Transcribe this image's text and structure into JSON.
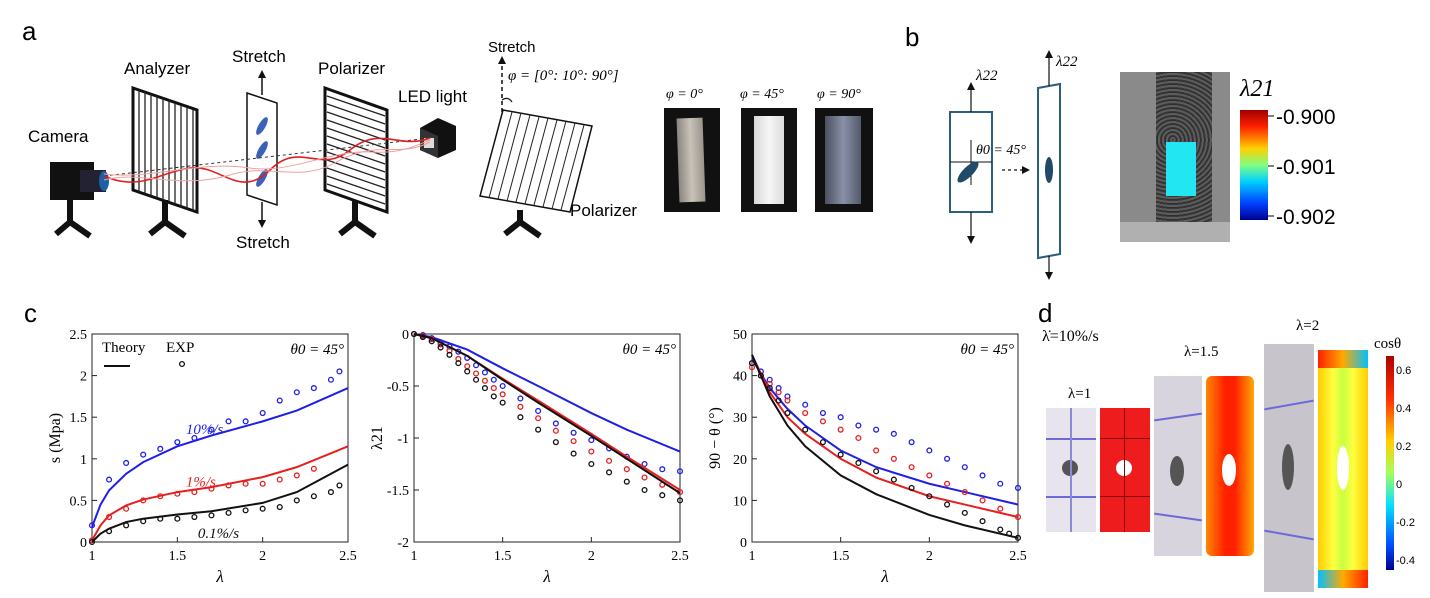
{
  "panels": {
    "a": {
      "letter": "a",
      "labels": {
        "camera": "Camera",
        "analyzer": "Analyzer",
        "stretch_top": "Stretch",
        "stretch_bottom": "Stretch",
        "polarizer": "Polarizer",
        "led": "LED light",
        "stretch_right": "Stretch",
        "phi_range": "φ = [0°: 10°: 90°]",
        "polarizer_right": "Polarizer"
      },
      "photos": [
        "φ = 0°",
        "φ = 45°",
        "φ = 90°"
      ]
    },
    "b": {
      "letter": "b",
      "lambda22_a": "λ22",
      "lambda22_b": "λ22",
      "theta_label": "θ0 = 45°",
      "colorbar_title": "λ21",
      "colorbar_ticks": [
        "-0.900",
        "-0.901",
        "-0.902"
      ]
    },
    "c": {
      "letter": "c"
    },
    "d": {
      "letter": "d",
      "rate": "λ̇=10%/s",
      "stages": [
        "λ=1",
        "λ=1.5",
        "λ=2"
      ],
      "colorbar_title": "cosθ",
      "colorbar_ticks": [
        "0.6",
        "0.4",
        "0.2",
        "0",
        "-0.2",
        "-0.4"
      ]
    }
  },
  "chart_data": [
    {
      "type": "line",
      "annotation": "θ0 = 45°",
      "xlabel": "λ",
      "ylabel": "s (Mpa)",
      "xlim": [
        1,
        2.5
      ],
      "ylim": [
        0,
        2.5
      ],
      "xticks": [
        "1",
        "1.5",
        "2",
        "2.5"
      ],
      "yticks": [
        "0",
        "0.5",
        "1",
        "1.5",
        "2",
        "2.5"
      ],
      "legend": {
        "theory": "Theory",
        "exp": "EXP"
      },
      "series": [
        {
          "name": "10%/s",
          "color": "#1f1fe6",
          "theory": {
            "x": [
              1,
              1.05,
              1.1,
              1.2,
              1.3,
              1.5,
              1.7,
              2.0,
              2.2,
              2.5
            ],
            "y": [
              0.18,
              0.45,
              0.62,
              0.82,
              0.96,
              1.15,
              1.28,
              1.45,
              1.58,
              1.85
            ]
          },
          "exp": {
            "x": [
              1,
              1.1,
              1.2,
              1.3,
              1.4,
              1.5,
              1.6,
              1.7,
              1.8,
              1.9,
              2.0,
              2.1,
              2.2,
              2.3,
              2.4,
              2.45
            ],
            "y": [
              0.2,
              0.75,
              0.95,
              1.05,
              1.12,
              1.2,
              1.25,
              1.35,
              1.45,
              1.45,
              1.55,
              1.7,
              1.8,
              1.85,
              1.95,
              2.05
            ]
          }
        },
        {
          "name": "1%/s",
          "color": "#e61f1f",
          "theory": {
            "x": [
              1,
              1.05,
              1.1,
              1.2,
              1.3,
              1.5,
              1.7,
              2.0,
              2.2,
              2.5
            ],
            "y": [
              0.02,
              0.2,
              0.32,
              0.44,
              0.51,
              0.6,
              0.66,
              0.78,
              0.9,
              1.15
            ]
          },
          "exp": {
            "x": [
              1,
              1.1,
              1.2,
              1.3,
              1.4,
              1.5,
              1.6,
              1.7,
              1.8,
              1.9,
              2.0,
              2.1,
              2.2,
              2.3
            ],
            "y": [
              0.02,
              0.3,
              0.4,
              0.5,
              0.55,
              0.58,
              0.6,
              0.64,
              0.68,
              0.7,
              0.7,
              0.75,
              0.8,
              0.88
            ]
          }
        },
        {
          "name": "0.1%/s",
          "color": "#111111",
          "theory": {
            "x": [
              1,
              1.05,
              1.1,
              1.2,
              1.3,
              1.5,
              1.7,
              2.0,
              2.2,
              2.5
            ],
            "y": [
              0.0,
              0.1,
              0.16,
              0.24,
              0.28,
              0.33,
              0.37,
              0.47,
              0.6,
              0.93
            ]
          },
          "exp": {
            "x": [
              1,
              1.1,
              1.2,
              1.3,
              1.4,
              1.5,
              1.6,
              1.7,
              1.8,
              1.9,
              2.0,
              2.1,
              2.2,
              2.3,
              2.4,
              2.45
            ],
            "y": [
              0.0,
              0.13,
              0.2,
              0.25,
              0.28,
              0.28,
              0.3,
              0.32,
              0.35,
              0.38,
              0.4,
              0.42,
              0.5,
              0.55,
              0.6,
              0.68
            ]
          }
        }
      ]
    },
    {
      "type": "line",
      "annotation": "θ0 = 45°",
      "xlabel": "λ",
      "ylabel": "λ21",
      "xlim": [
        1,
        2.5
      ],
      "ylim": [
        -2,
        0
      ],
      "xticks": [
        "1",
        "1.5",
        "2",
        "2.5"
      ],
      "yticks": [
        "0",
        "-0.5",
        "-1",
        "-1.5",
        "-2"
      ],
      "series": [
        {
          "name": "10%/s",
          "color": "#1f1fe6",
          "theory": {
            "x": [
              1,
              1.1,
              1.3,
              1.5,
              1.7,
              2.0,
              2.2,
              2.5
            ],
            "y": [
              0,
              -0.03,
              -0.15,
              -0.33,
              -0.5,
              -0.76,
              -0.92,
              -1.13
            ]
          },
          "exp": {
            "x": [
              1,
              1.05,
              1.1,
              1.15,
              1.2,
              1.25,
              1.3,
              1.35,
              1.4,
              1.45,
              1.5,
              1.6,
              1.7,
              1.8,
              1.9,
              2.0,
              2.1,
              2.2,
              2.3,
              2.4,
              2.5
            ],
            "y": [
              0,
              -0.01,
              -0.04,
              -0.08,
              -0.12,
              -0.17,
              -0.23,
              -0.3,
              -0.37,
              -0.44,
              -0.5,
              -0.62,
              -0.74,
              -0.86,
              -0.95,
              -1.02,
              -1.1,
              -1.18,
              -1.25,
              -1.3,
              -1.32
            ]
          }
        },
        {
          "name": "1%/s",
          "color": "#e61f1f",
          "theory": {
            "x": [
              1,
              1.1,
              1.3,
              1.5,
              1.7,
              2.0,
              2.2,
              2.5
            ],
            "y": [
              0,
              -0.04,
              -0.21,
              -0.43,
              -0.64,
              -0.96,
              -1.18,
              -1.5
            ]
          },
          "exp": {
            "x": [
              1,
              1.05,
              1.1,
              1.15,
              1.2,
              1.25,
              1.3,
              1.35,
              1.4,
              1.45,
              1.5,
              1.6,
              1.7,
              1.8,
              1.9,
              2.0,
              2.1,
              2.2,
              2.3,
              2.4,
              2.5
            ],
            "y": [
              0,
              -0.02,
              -0.05,
              -0.1,
              -0.16,
              -0.24,
              -0.31,
              -0.38,
              -0.45,
              -0.52,
              -0.58,
              -0.7,
              -0.81,
              -0.93,
              -1.03,
              -1.13,
              -1.22,
              -1.3,
              -1.38,
              -1.45,
              -1.52
            ]
          }
        },
        {
          "name": "0.1%/s",
          "color": "#111111",
          "theory": {
            "x": [
              1,
              1.1,
              1.3,
              1.5,
              1.7,
              2.0,
              2.2,
              2.5
            ],
            "y": [
              0,
              -0.04,
              -0.21,
              -0.44,
              -0.66,
              -0.98,
              -1.2,
              -1.53
            ]
          },
          "exp": {
            "x": [
              1,
              1.05,
              1.1,
              1.15,
              1.2,
              1.25,
              1.3,
              1.35,
              1.4,
              1.45,
              1.5,
              1.6,
              1.7,
              1.8,
              1.9,
              2.0,
              2.1,
              2.2,
              2.3,
              2.4,
              2.5
            ],
            "y": [
              0,
              -0.03,
              -0.07,
              -0.13,
              -0.2,
              -0.28,
              -0.36,
              -0.44,
              -0.52,
              -0.6,
              -0.66,
              -0.8,
              -0.92,
              -1.04,
              -1.15,
              -1.25,
              -1.33,
              -1.42,
              -1.5,
              -1.55,
              -1.6
            ]
          }
        }
      ]
    },
    {
      "type": "line",
      "annotation": "θ0 = 45°",
      "xlabel": "λ",
      "ylabel": "90 − θ (°)",
      "xlim": [
        1,
        2.5
      ],
      "ylim": [
        0,
        50
      ],
      "xticks": [
        "1",
        "1.5",
        "2",
        "2.5"
      ],
      "yticks": [
        "0",
        "10",
        "20",
        "30",
        "40",
        "50"
      ],
      "series": [
        {
          "name": "10%/s",
          "color": "#1f1fe6",
          "theory": {
            "x": [
              1,
              1.1,
              1.2,
              1.3,
              1.5,
              1.7,
              2.0,
              2.2,
              2.5
            ],
            "y": [
              44,
              37,
              32,
              28,
              22,
              18,
              14,
              12,
              9
            ]
          },
          "exp": {
            "x": [
              1,
              1.05,
              1.1,
              1.15,
              1.2,
              1.3,
              1.4,
              1.5,
              1.6,
              1.7,
              1.8,
              1.9,
              2.0,
              2.1,
              2.2,
              2.3,
              2.4,
              2.5
            ],
            "y": [
              43,
              41,
              39,
              37,
              35,
              33,
              31,
              30,
              28,
              27,
              26,
              24,
              22,
              20,
              18,
              16,
              14,
              13
            ]
          }
        },
        {
          "name": "1%/s",
          "color": "#e61f1f",
          "theory": {
            "x": [
              1,
              1.1,
              1.2,
              1.3,
              1.5,
              1.7,
              2.0,
              2.2,
              2.5
            ],
            "y": [
              45,
              36,
              30,
              26,
              20,
              15.5,
              11,
              9,
              6
            ]
          },
          "exp": {
            "x": [
              1,
              1.05,
              1.1,
              1.15,
              1.2,
              1.3,
              1.4,
              1.5,
              1.6,
              1.7,
              1.8,
              1.9,
              2.0,
              2.1,
              2.2,
              2.3,
              2.4,
              2.5
            ],
            "y": [
              42,
              40,
              38,
              36,
              34,
              31,
              29,
              27,
              25,
              22,
              20,
              18,
              16,
              14,
              12,
              10,
              8,
              6
            ]
          }
        },
        {
          "name": "0.1%/s",
          "color": "#111111",
          "theory": {
            "x": [
              1,
              1.1,
              1.2,
              1.3,
              1.5,
              1.7,
              2.0,
              2.2,
              2.5
            ],
            "y": [
              45,
              35,
              28,
              23,
              16,
              11.5,
              6.5,
              4,
              1
            ]
          },
          "exp": {
            "x": [
              1,
              1.05,
              1.1,
              1.15,
              1.2,
              1.3,
              1.4,
              1.5,
              1.6,
              1.7,
              1.8,
              1.9,
              2.0,
              2.1,
              2.2,
              2.3,
              2.4,
              2.45,
              2.5
            ],
            "y": [
              43,
              40,
              37,
              34,
              31,
              27,
              24,
              21,
              19,
              17,
              15,
              13,
              11,
              9,
              7,
              5,
              3,
              2,
              1
            ]
          }
        }
      ]
    }
  ]
}
